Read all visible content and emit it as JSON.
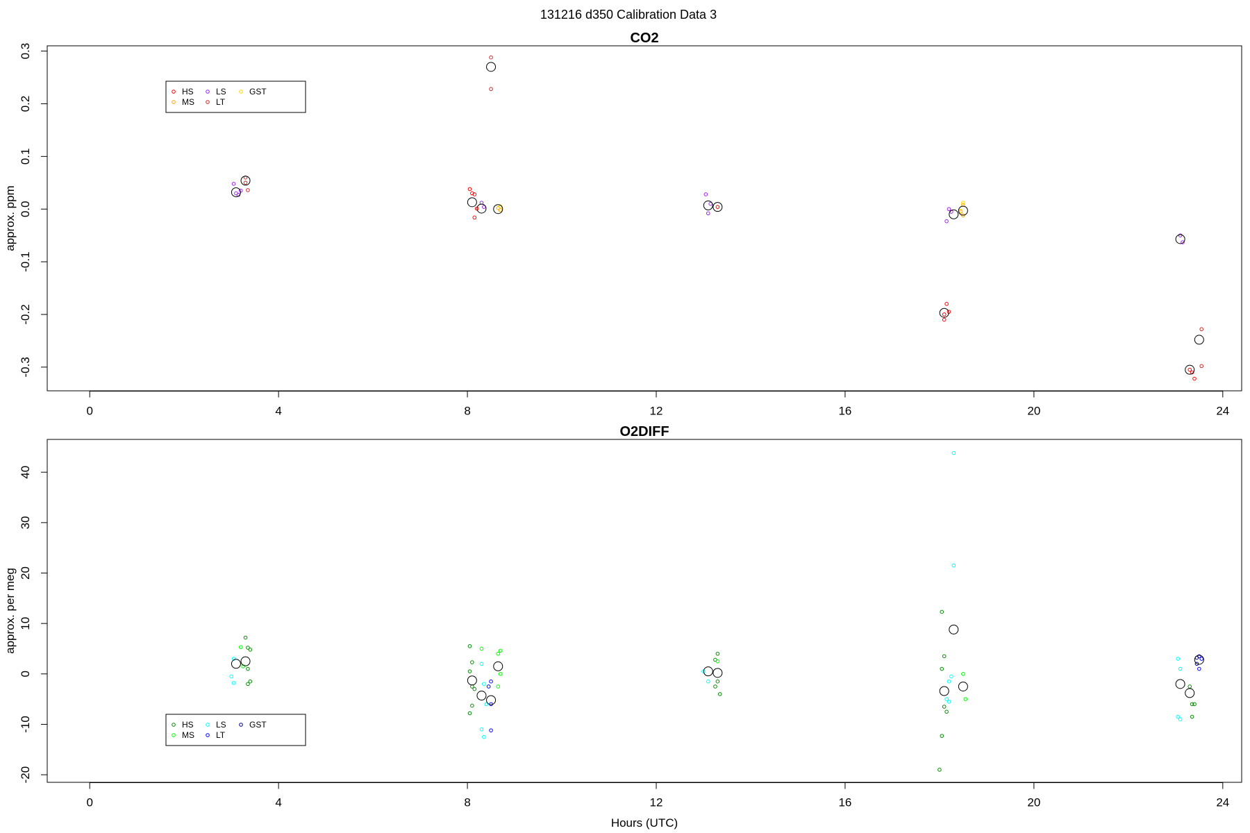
{
  "page": {
    "title": "131216   d350   Calibration Data 3"
  },
  "colors": {
    "HS": "#ff0000",
    "MS": "#ffa500",
    "LS": "#a020f0",
    "LT": "#cd2626",
    "GST": "#ffd700"
  },
  "chart_data": [
    {
      "type": "scatter",
      "title": "CO2",
      "xlabel": "",
      "ylabel": "approx. ppm",
      "xlim": [
        -0.9,
        24.4
      ],
      "ylim": [
        -0.345,
        0.31
      ],
      "xticks": [
        0,
        4,
        8,
        12,
        16,
        20,
        24
      ],
      "yticks": [
        -0.3,
        -0.2,
        -0.1,
        0.0,
        0.1,
        0.2,
        0.3
      ],
      "ytick_labels": [
        "-0.3",
        "-0.2",
        "-0.1",
        "0.0",
        "0.1",
        "0.2",
        "0.3"
      ],
      "legend": {
        "position": "top-left",
        "entries": [
          "HS",
          "MS",
          "LS",
          "LT",
          "GST"
        ]
      },
      "series": [
        {
          "name": "HS",
          "color": "#ff0000",
          "points": [
            [
              8.05,
              0.038
            ],
            [
              8.1,
              0.03
            ],
            [
              8.15,
              0.028
            ],
            [
              8.2,
              0.001
            ],
            [
              8.15,
              -0.016
            ],
            [
              13.3,
              0.004
            ],
            [
              18.1,
              -0.21
            ],
            [
              18.15,
              -0.18
            ],
            [
              18.2,
              -0.195
            ],
            [
              18.1,
              -0.2
            ],
            [
              23.3,
              -0.305
            ],
            [
              23.35,
              -0.31
            ],
            [
              23.4,
              -0.322
            ]
          ]
        },
        {
          "name": "MS",
          "color": "#ffa500",
          "points": [
            [
              8.65,
              0.002
            ],
            [
              8.7,
              -0.002
            ],
            [
              18.5,
              0.008
            ],
            [
              18.5,
              -0.012
            ],
            [
              18.45,
              -0.005
            ]
          ]
        },
        {
          "name": "LS",
          "color": "#a020f0",
          "points": [
            [
              3.05,
              0.048
            ],
            [
              3.1,
              0.03
            ],
            [
              3.15,
              0.027
            ],
            [
              3.2,
              0.035
            ],
            [
              8.3,
              0.012
            ],
            [
              8.35,
              0.004
            ],
            [
              13.05,
              0.028
            ],
            [
              13.1,
              -0.008
            ],
            [
              13.15,
              0.01
            ],
            [
              18.2,
              0.0
            ],
            [
              18.15,
              -0.023
            ],
            [
              18.25,
              -0.005
            ],
            [
              23.1,
              -0.05
            ],
            [
              23.15,
              -0.063
            ]
          ]
        },
        {
          "name": "LT",
          "color": "#cd2626",
          "points": [
            [
              3.3,
              0.06
            ],
            [
              3.3,
              0.05
            ],
            [
              3.35,
              0.036
            ],
            [
              8.5,
              0.288
            ],
            [
              8.5,
              0.228
            ],
            [
              23.55,
              -0.228
            ],
            [
              23.55,
              -0.298
            ]
          ]
        },
        {
          "name": "GST",
          "color": "#ffd700",
          "points": [
            [
              8.7,
              0.005
            ],
            [
              18.5,
              0.012
            ],
            [
              18.45,
              -0.003
            ]
          ]
        }
      ],
      "means": [
        [
          3.1,
          0.032
        ],
        [
          3.3,
          0.054
        ],
        [
          8.1,
          0.013
        ],
        [
          8.3,
          0.001
        ],
        [
          8.5,
          0.27
        ],
        [
          8.65,
          0.0
        ],
        [
          13.1,
          0.007
        ],
        [
          13.3,
          0.004
        ],
        [
          18.1,
          -0.197
        ],
        [
          18.3,
          -0.01
        ],
        [
          18.5,
          -0.003
        ],
        [
          23.1,
          -0.057
        ],
        [
          23.3,
          -0.305
        ],
        [
          23.5,
          -0.248
        ]
      ]
    },
    {
      "type": "scatter",
      "title": "O2DIFF",
      "xlabel": "Hours (UTC)",
      "ylabel": "approx. per meg",
      "xlim": [
        -0.9,
        24.4
      ],
      "ylim": [
        -21.5,
        46.5
      ],
      "xticks": [
        0,
        4,
        8,
        12,
        16,
        20,
        24
      ],
      "yticks": [
        -20,
        -10,
        0,
        10,
        20,
        30,
        40
      ],
      "ytick_labels": [
        "-20",
        "-10",
        "0",
        "10",
        "20",
        "30",
        "40"
      ],
      "legend": {
        "position": "bottom-left",
        "entries": [
          "HS",
          "MS",
          "LS",
          "LT",
          "GST"
        ]
      },
      "series": [
        {
          "name": "HS",
          "color": "#008b00",
          "points": [
            [
              3.3,
              7.2
            ],
            [
              3.35,
              5.2
            ],
            [
              3.4,
              4.8
            ],
            [
              3.35,
              1.0
            ],
            [
              3.4,
              -1.5
            ],
            [
              3.35,
              -2.0
            ],
            [
              8.05,
              5.5
            ],
            [
              8.1,
              2.3
            ],
            [
              8.05,
              0.5
            ],
            [
              8.1,
              -2.5
            ],
            [
              8.15,
              -3.0
            ],
            [
              8.1,
              -6.3
            ],
            [
              8.05,
              -7.8
            ],
            [
              13.3,
              4.0
            ],
            [
              13.25,
              2.8
            ],
            [
              13.3,
              -1.5
            ],
            [
              13.25,
              -2.5
            ],
            [
              13.35,
              -4.0
            ],
            [
              18.05,
              12.3
            ],
            [
              18.1,
              3.5
            ],
            [
              18.05,
              1.0
            ],
            [
              18.1,
              -6.5
            ],
            [
              18.15,
              -7.5
            ],
            [
              18.05,
              -12.3
            ],
            [
              18.0,
              -19.0
            ],
            [
              23.3,
              -2.5
            ],
            [
              23.35,
              -6.0
            ],
            [
              23.4,
              -6.0
            ],
            [
              23.35,
              -8.5
            ]
          ]
        },
        {
          "name": "MS",
          "color": "#00ff00",
          "points": [
            [
              3.2,
              5.3
            ],
            [
              3.25,
              1.5
            ],
            [
              8.3,
              5.0
            ],
            [
              8.7,
              4.6
            ],
            [
              8.65,
              4.0
            ],
            [
              8.7,
              0.0
            ],
            [
              8.65,
              -2.5
            ],
            [
              13.3,
              2.5
            ],
            [
              18.5,
              0.0
            ],
            [
              18.55,
              -5.0
            ]
          ]
        },
        {
          "name": "LS",
          "color": "#00ffff",
          "points": [
            [
              3.05,
              3.0
            ],
            [
              3.0,
              -0.5
            ],
            [
              3.05,
              -1.8
            ],
            [
              8.3,
              2.0
            ],
            [
              8.35,
              -2.0
            ],
            [
              8.4,
              -6.0
            ],
            [
              8.3,
              -11.0
            ],
            [
              8.35,
              -12.5
            ],
            [
              13.0,
              0.5
            ],
            [
              13.1,
              -1.5
            ],
            [
              18.3,
              43.8
            ],
            [
              18.3,
              21.5
            ],
            [
              18.25,
              -0.5
            ],
            [
              18.2,
              -1.5
            ],
            [
              18.15,
              -5.0
            ],
            [
              18.2,
              -5.5
            ],
            [
              23.05,
              3.0
            ],
            [
              23.1,
              1.0
            ],
            [
              23.05,
              -8.5
            ],
            [
              23.1,
              -9.0
            ]
          ]
        },
        {
          "name": "LT",
          "color": "#0000ff",
          "points": [
            [
              8.5,
              -1.5
            ],
            [
              8.45,
              -2.5
            ],
            [
              8.5,
              -6.0
            ],
            [
              8.5,
              -11.2
            ],
            [
              23.5,
              3.5
            ],
            [
              23.55,
              3.0
            ],
            [
              23.5,
              1.0
            ]
          ]
        },
        {
          "name": "GST",
          "color": "#00008b",
          "points": [
            [
              23.45,
              3.2
            ],
            [
              23.45,
              2.0
            ]
          ]
        }
      ],
      "means": [
        [
          3.1,
          2.0
        ],
        [
          3.3,
          2.5
        ],
        [
          8.1,
          -1.3
        ],
        [
          8.3,
          -4.3
        ],
        [
          8.5,
          -5.2
        ],
        [
          8.65,
          1.5
        ],
        [
          13.1,
          0.5
        ],
        [
          13.3,
          0.2
        ],
        [
          18.1,
          -3.4
        ],
        [
          18.3,
          8.8
        ],
        [
          18.5,
          -2.5
        ],
        [
          23.1,
          -2.0
        ],
        [
          23.3,
          -3.8
        ],
        [
          23.5,
          2.8
        ]
      ]
    }
  ]
}
